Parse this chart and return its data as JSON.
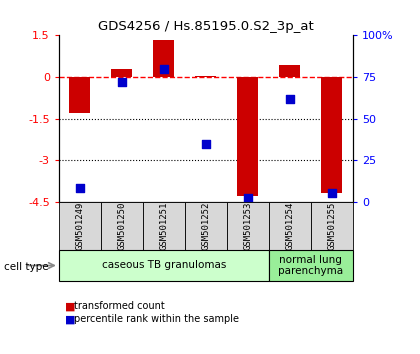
{
  "title": "GDS4256 / Hs.85195.0.S2_3p_at",
  "samples": [
    "GSM501249",
    "GSM501250",
    "GSM501251",
    "GSM501252",
    "GSM501253",
    "GSM501254",
    "GSM501255"
  ],
  "transformed_count": [
    -1.3,
    0.3,
    1.35,
    0.02,
    -4.3,
    0.45,
    -4.2
  ],
  "percentile_rank": [
    8,
    72,
    80,
    35,
    2,
    62,
    5
  ],
  "ylim_left": [
    -4.5,
    1.5
  ],
  "ylim_right": [
    0,
    100
  ],
  "yticks_left": [
    1.5,
    0,
    -1.5,
    -3,
    -4.5
  ],
  "yticks_right": [
    0,
    25,
    50,
    75,
    100
  ],
  "ytick_labels_left": [
    "1.5",
    "0",
    "-1.5",
    "-3",
    "-4.5"
  ],
  "ytick_labels_right": [
    "0",
    "25",
    "50",
    "75",
    "100%"
  ],
  "hline_y": 0,
  "dotted_lines": [
    -1.5,
    -3
  ],
  "bar_color": "#cc0000",
  "dot_color": "#0000cc",
  "cell_types": [
    {
      "label": "caseous TB granulomas",
      "start": 0,
      "end": 5,
      "color": "#ccffcc"
    },
    {
      "label": "normal lung\nparenchyma",
      "start": 5,
      "end": 7,
      "color": "#99ee99"
    }
  ],
  "legend_bar_label": "transformed count",
  "legend_dot_label": "percentile rank within the sample",
  "cell_type_label": "cell type",
  "bar_width": 0.5,
  "dot_size": 35,
  "bg_color": "#ffffff"
}
